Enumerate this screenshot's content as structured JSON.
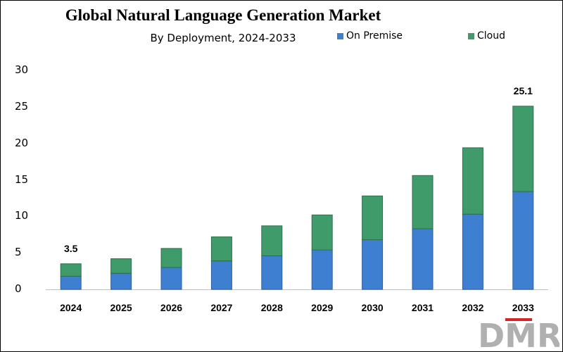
{
  "chart_data": {
    "type": "bar",
    "stacked": true,
    "title": "Global Natural Language Generation Market",
    "subtitle": "By Deployment, 2024-2033",
    "categories": [
      "2024",
      "2025",
      "2026",
      "2027",
      "2028",
      "2029",
      "2030",
      "2031",
      "2032",
      "2033"
    ],
    "series": [
      {
        "name": "On Premise",
        "color": "#3f7fd2",
        "values": [
          1.8,
          2.2,
          3.0,
          3.9,
          4.6,
          5.4,
          6.8,
          8.3,
          10.3,
          13.4
        ]
      },
      {
        "name": "Cloud",
        "color": "#3f9b6a",
        "values": [
          1.7,
          2.0,
          2.6,
          3.3,
          4.1,
          4.8,
          6.0,
          7.3,
          9.1,
          11.7
        ]
      }
    ],
    "data_labels": [
      {
        "category": "2024",
        "text": "3.5",
        "value": 3.5
      },
      {
        "category": "2033",
        "text": "25.1",
        "value": 25.1
      }
    ],
    "ylim": [
      0,
      30
    ],
    "yticks": [
      "0",
      "5",
      "10",
      "15",
      "20",
      "25",
      "30"
    ],
    "xlabel": "",
    "ylabel": "",
    "legend_position": "top-right",
    "grid": false
  },
  "logo": {
    "text": "DMR",
    "icon": "dmr-logo"
  }
}
